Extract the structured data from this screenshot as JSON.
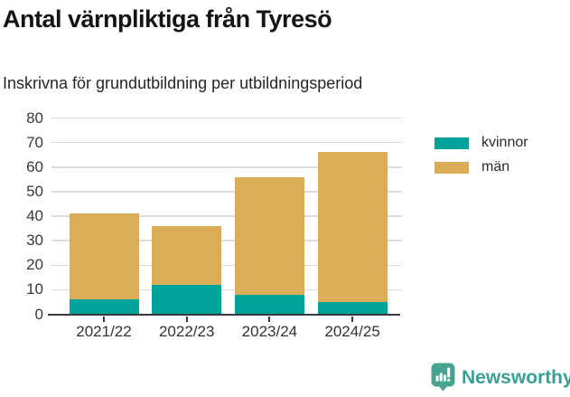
{
  "title": "Antal värnpliktiga från Tyresö",
  "subtitle": "Inskrivna för grundutbildning per utbildningsperiod",
  "legend": {
    "items": [
      {
        "label": "kvinnor",
        "color": "#00a399"
      },
      {
        "label": "män",
        "color": "#dbad58"
      }
    ]
  },
  "footer": {
    "brand": "Newsworthy",
    "brand_color": "#3aa096",
    "icon": "newsworthy-speech-bubble-chart-icon",
    "icon_color": "#48a491"
  },
  "chart_data": {
    "type": "bar",
    "stacked": true,
    "title": "Antal värnpliktiga från Tyresö",
    "subtitle": "Inskrivna för grundutbildning per utbildningsperiod",
    "categories": [
      "2021/22",
      "2022/23",
      "2023/24",
      "2024/25"
    ],
    "series": [
      {
        "name": "kvinnor",
        "color": "#00a399",
        "values": [
          6,
          12,
          8,
          5
        ]
      },
      {
        "name": "män",
        "color": "#dbad58",
        "values": [
          35,
          24,
          48,
          61
        ]
      }
    ],
    "totals": [
      41,
      36,
      56,
      66
    ],
    "xlabel": "",
    "ylabel": "",
    "ylim": [
      0,
      80
    ],
    "yticks": [
      0,
      10,
      20,
      30,
      40,
      50,
      60,
      70,
      80
    ],
    "grid": true,
    "gridline_color": "#dcdcdc",
    "axis_color": "#3a3a3a",
    "legend_position": "right"
  }
}
